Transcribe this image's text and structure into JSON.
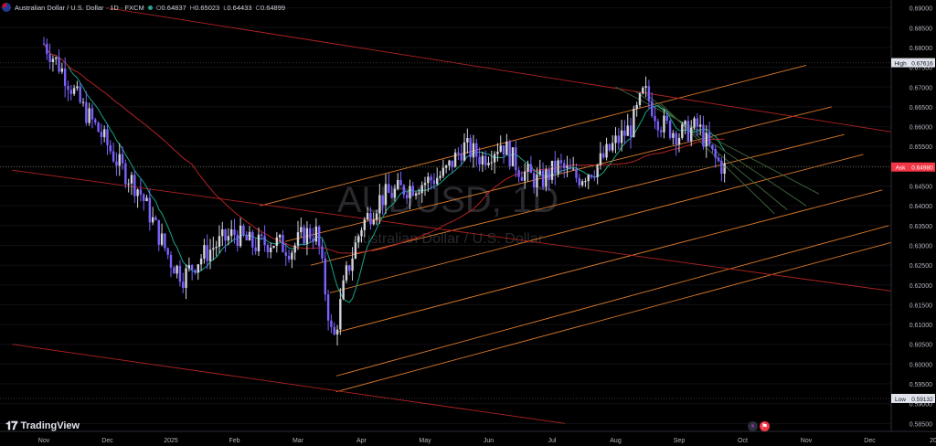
{
  "header": {
    "title": "Australian Dollar / U.S. Dollar · 1D · FXCM",
    "ohlc": [
      {
        "k": "O",
        "v": "0.64837"
      },
      {
        "k": "H",
        "v": "0.65023"
      },
      {
        "k": "L",
        "v": "0.64433"
      },
      {
        "k": "C",
        "v": "0.64899"
      }
    ]
  },
  "watermark": {
    "symbol": "AUDUSD, 1D",
    "name": "Australian Dollar / U.S. Dollar"
  },
  "brand": {
    "name": "TradingView"
  },
  "colors": {
    "background": "#000000",
    "bull": "#d1d4dc",
    "bear": "#7b61ff",
    "ema": "#17a589",
    "sma": "#b22222",
    "channel": "#d97a2b",
    "green_channel": "#3f6b3f",
    "ask": "#f23645",
    "axis_text": "#b2b5be"
  },
  "price_axis": {
    "ticks": [
      "0.69000",
      "0.68500",
      "0.68000",
      "0.67500",
      "0.67000",
      "0.66500",
      "0.66000",
      "0.65500",
      "0.65000",
      "0.64500",
      "0.64000",
      "0.63500",
      "0.63000",
      "0.62500",
      "0.62000",
      "0.61500",
      "0.61000",
      "0.60500",
      "0.60000",
      "0.59500",
      "0.59000",
      "0.58500"
    ],
    "high": {
      "label": "High",
      "value": "0.67616"
    },
    "ask": {
      "label": "Ask",
      "value": "0.64980"
    },
    "low": {
      "label": "Low",
      "value": "0.59132"
    }
  },
  "time_axis": [
    "Nov",
    "Dec",
    "2025",
    "Feb",
    "Mar",
    "Apr",
    "May",
    "Jun",
    "Jul",
    "Aug",
    "Sep",
    "Oct",
    "Nov",
    "Dec",
    "20"
  ],
  "chart_data": {
    "type": "candlestick",
    "symbol": "AUDUSD",
    "interval": "1D",
    "ylim": [
      0.583,
      0.692
    ],
    "months": [
      "Nov",
      "Dec",
      "2025",
      "Feb",
      "Mar",
      "Apr",
      "May",
      "Jun",
      "Jul",
      "Aug",
      "Sep",
      "Oct",
      "Nov",
      "Dec"
    ],
    "close_path": [
      {
        "m": 0.0,
        "p": 0.681
      },
      {
        "m": 0.3,
        "p": 0.674
      },
      {
        "m": 0.6,
        "p": 0.665
      },
      {
        "m": 0.9,
        "p": 0.658
      },
      {
        "m": 1.2,
        "p": 0.65
      },
      {
        "m": 1.5,
        "p": 0.644
      },
      {
        "m": 1.8,
        "p": 0.633
      },
      {
        "m": 2.0,
        "p": 0.626
      },
      {
        "m": 2.2,
        "p": 0.622
      },
      {
        "m": 2.4,
        "p": 0.626
      },
      {
        "m": 2.7,
        "p": 0.63
      },
      {
        "m": 3.0,
        "p": 0.633
      },
      {
        "m": 3.3,
        "p": 0.63
      },
      {
        "m": 3.6,
        "p": 0.631
      },
      {
        "m": 3.9,
        "p": 0.629
      },
      {
        "m": 4.1,
        "p": 0.633
      },
      {
        "m": 4.3,
        "p": 0.633
      },
      {
        "m": 4.55,
        "p": 0.605
      },
      {
        "m": 4.75,
        "p": 0.622
      },
      {
        "m": 5.0,
        "p": 0.635
      },
      {
        "m": 5.3,
        "p": 0.642
      },
      {
        "m": 5.6,
        "p": 0.644
      },
      {
        "m": 6.0,
        "p": 0.646
      },
      {
        "m": 6.3,
        "p": 0.648
      },
      {
        "m": 6.6,
        "p": 0.655
      },
      {
        "m": 6.9,
        "p": 0.652
      },
      {
        "m": 7.2,
        "p": 0.656
      },
      {
        "m": 7.5,
        "p": 0.649
      },
      {
        "m": 7.8,
        "p": 0.646
      },
      {
        "m": 8.1,
        "p": 0.65
      },
      {
        "m": 8.4,
        "p": 0.647
      },
      {
        "m": 8.7,
        "p": 0.65
      },
      {
        "m": 9.0,
        "p": 0.656
      },
      {
        "m": 9.25,
        "p": 0.66
      },
      {
        "m": 9.45,
        "p": 0.669
      },
      {
        "m": 9.7,
        "p": 0.661
      },
      {
        "m": 10.0,
        "p": 0.658
      },
      {
        "m": 10.3,
        "p": 0.66
      },
      {
        "m": 10.55,
        "p": 0.652
      },
      {
        "m": 10.75,
        "p": 0.649
      }
    ],
    "indicators": [
      {
        "kind": "ema",
        "lag_months": 0.45
      },
      {
        "kind": "sma",
        "lag_months": 2.4
      }
    ],
    "trendlines": [
      {
        "color": "#d97a2b",
        "from": {
          "m": 3.4,
          "p": 0.64
        },
        "to": {
          "m": 12.0,
          "p": 0.6755
        }
      },
      {
        "color": "#d97a2b",
        "from": {
          "m": 3.8,
          "p": 0.631
        },
        "to": {
          "m": 12.4,
          "p": 0.665
        }
      },
      {
        "color": "#d97a2b",
        "from": {
          "m": 4.2,
          "p": 0.625
        },
        "to": {
          "m": 12.6,
          "p": 0.658
        }
      },
      {
        "color": "#d97a2b",
        "from": {
          "m": 4.5,
          "p": 0.618
        },
        "to": {
          "m": 12.9,
          "p": 0.653
        }
      },
      {
        "color": "#d97a2b",
        "from": {
          "m": 4.6,
          "p": 0.608
        },
        "to": {
          "m": 13.2,
          "p": 0.644
        }
      },
      {
        "color": "#d97a2b",
        "from": {
          "m": 4.6,
          "p": 0.597
        },
        "to": {
          "m": 13.3,
          "p": 0.635
        }
      },
      {
        "color": "#d97a2b",
        "from": {
          "m": 4.6,
          "p": 0.593
        },
        "to": {
          "m": 13.4,
          "p": 0.631
        }
      },
      {
        "color": "#b22222",
        "from": {
          "m": 1.0,
          "p": 0.69
        },
        "to": {
          "m": 14.0,
          "p": 0.657
        }
      },
      {
        "color": "#b22222",
        "from": {
          "m": -0.5,
          "p": 0.649
        },
        "to": {
          "m": 14.0,
          "p": 0.617
        }
      },
      {
        "color": "#b22222",
        "from": {
          "m": -0.5,
          "p": 0.605
        },
        "to": {
          "m": 8.2,
          "p": 0.585
        }
      },
      {
        "color": "#3f6b3f",
        "from": {
          "m": 9.0,
          "p": 0.67
        },
        "to": {
          "m": 12.2,
          "p": 0.643
        }
      },
      {
        "color": "#3f6b3f",
        "from": {
          "m": 9.3,
          "p": 0.669
        },
        "to": {
          "m": 12.0,
          "p": 0.64
        }
      },
      {
        "color": "#3f6b3f",
        "from": {
          "m": 9.5,
          "p": 0.668
        },
        "to": {
          "m": 11.7,
          "p": 0.639
        }
      },
      {
        "color": "#3f6b3f",
        "from": {
          "m": 9.7,
          "p": 0.666
        },
        "to": {
          "m": 11.5,
          "p": 0.638
        }
      }
    ]
  }
}
